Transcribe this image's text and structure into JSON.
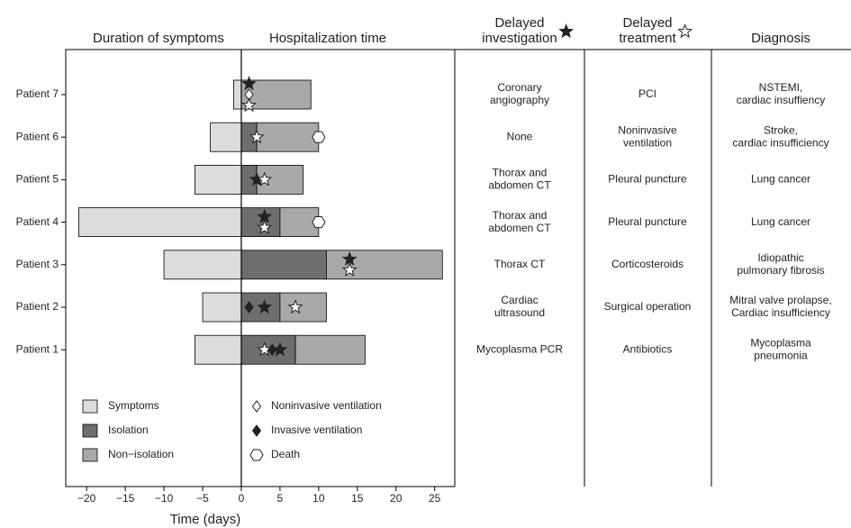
{
  "chart_data": {
    "type": "timeline-bar",
    "titles": [
      "Duration of symptoms",
      "Hospitalization time"
    ],
    "xlabel": "Time (days)",
    "categories": [
      "Patient 7",
      "Patient 6",
      "Patient 5",
      "Patient 4",
      "Patient 3",
      "Patient 2",
      "Patient 1"
    ],
    "xlim": [
      -22.7,
      27.6
    ],
    "xticks": [
      {
        "value": -20,
        "label": "−20"
      },
      {
        "value": -15,
        "label": "−15"
      },
      {
        "value": -10,
        "label": "−10"
      },
      {
        "value": -5,
        "label": "−5"
      },
      0,
      5,
      10,
      15,
      20,
      25
    ],
    "series": [
      {
        "name": "Symptoms",
        "color": "#dcdcdc",
        "values": [
          -1,
          -4,
          -6,
          -21,
          -10,
          -5,
          -6
        ]
      },
      {
        "name": "Isolation",
        "color": "#6e6e6e",
        "values": [
          0,
          2,
          2,
          5,
          11,
          5,
          7
        ]
      },
      {
        "name": "Non−isolation",
        "color": "#a9a9a9",
        "values": [
          9,
          8,
          6,
          5,
          15,
          6,
          9
        ]
      }
    ],
    "markers": [
      {
        "symbol": "star",
        "filled": true,
        "values": [
          1,
          null,
          2,
          3,
          14,
          3,
          5
        ]
      },
      {
        "name": "Noninvasive ventilation",
        "symbol": "diamond",
        "filled": false,
        "values": [
          1,
          null,
          null,
          null,
          null,
          null,
          null
        ]
      },
      {
        "name": "Invasive ventilation",
        "symbol": "diamond",
        "filled": true,
        "values": [
          null,
          null,
          null,
          null,
          null,
          1,
          4
        ]
      },
      {
        "symbol": "star",
        "filled": false,
        "values": [
          1,
          2,
          3,
          3,
          14,
          7,
          3
        ]
      },
      {
        "name": "Death",
        "symbol": "hexagon",
        "filled": false,
        "values": [
          null,
          10,
          null,
          10,
          null,
          null,
          null
        ]
      }
    ]
  },
  "table": {
    "columns": [
      {
        "title": [
          "Delayed",
          "investigation"
        ],
        "symbol": "star",
        "filled": true
      },
      {
        "title": [
          "Delayed",
          "treatment"
        ],
        "symbol": "star",
        "filled": false
      },
      {
        "title": [
          "Diagnosis"
        ]
      }
    ],
    "rows": [
      [
        [
          "Coronary",
          "angiography"
        ],
        [
          "PCI"
        ],
        [
          "NSTEMI,",
          "cardiac insuffiency"
        ]
      ],
      [
        [
          "None"
        ],
        [
          "Noninvasive",
          "ventilation"
        ],
        [
          "Stroke,",
          "cardiac insufficiency"
        ]
      ],
      [
        [
          "Thorax and",
          "abdomen CT"
        ],
        [
          "Pleural puncture"
        ],
        [
          "Lung cancer"
        ]
      ],
      [
        [
          "Thorax and",
          "abdomen CT"
        ],
        [
          "Pleural puncture"
        ],
        [
          "Lung cancer"
        ]
      ],
      [
        [
          "Thorax CT"
        ],
        [
          "Corticosteroids"
        ],
        [
          "Idiopathic",
          "pulmonary fibrosis"
        ]
      ],
      [
        [
          "Cardiac",
          "ultrasound"
        ],
        [
          "Surgical operation"
        ],
        [
          "Mitral valve prolapse,",
          "Cardiac insufficiency"
        ]
      ],
      [
        [
          "Mycoplasma PCR"
        ],
        [
          "Antibiotics"
        ],
        [
          "Mycoplasma",
          "pneumonia"
        ]
      ]
    ]
  }
}
